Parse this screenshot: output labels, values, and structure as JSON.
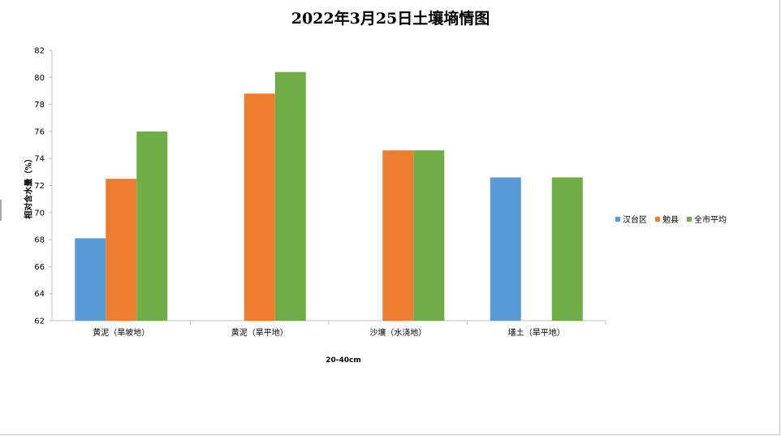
{
  "chart_data": {
    "type": "bar",
    "title": "2022年3月25日土壤墒情图",
    "xlabel": "20-40cm",
    "ylabel": "相对含水量（%）",
    "ylim": [
      62,
      82
    ],
    "ytick_step": 2,
    "categories": [
      "黄泥（旱坡地）",
      "黄泥（旱平地）",
      "沙壤（水浇地）",
      "墡土（旱平地）"
    ],
    "series": [
      {
        "name": "汉台区",
        "color": "#5b9bd5",
        "values": [
          68.1,
          null,
          null,
          72.6
        ]
      },
      {
        "name": "勉县",
        "color": "#ed7d31",
        "values": [
          72.5,
          78.8,
          74.6,
          null
        ]
      },
      {
        "name": "全市平均",
        "color": "#70ad47",
        "values": [
          76.0,
          80.4,
          74.6,
          72.6
        ]
      }
    ],
    "legend_position": "right",
    "grid": false
  }
}
